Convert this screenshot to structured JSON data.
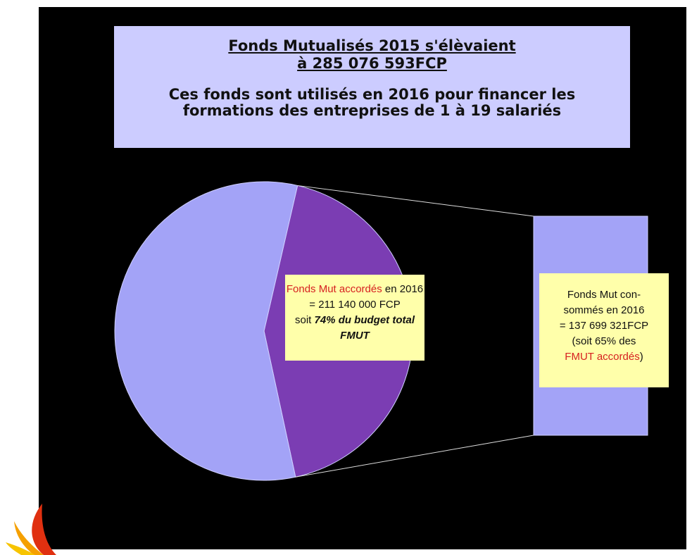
{
  "chart_data": {
    "type": "pie",
    "title": [
      "Fonds Mutualisés 2015 s'élèvaient",
      "à 285 076 593FCP"
    ],
    "subtitle": [
      "Ces fonds sont utilisés en 2016 pour financer les",
      "formations des entreprises de 1 à 19 salariés"
    ],
    "values": [
      43,
      57
    ],
    "colors": [
      "#7b3db3",
      "#a3a3f7"
    ],
    "bar_color": "#a3a3f7",
    "annotations": [
      {
        "lines": [
          [
            "Fonds Mut  accordés",
            " en 2016"
          ],
          [
            "= 211 140 000 FCP"
          ],
          [
            "soit ",
            "74% du budget total"
          ],
          [
            "FMUT"
          ]
        ]
      },
      {
        "lines": [
          [
            "Fonds Mut con-"
          ],
          [
            "sommés en  2016"
          ],
          [
            "= 137 699 321FCP"
          ],
          [
            "(soit 65% des"
          ],
          [
            "FMUT accordés",
            ")"
          ]
        ]
      }
    ]
  }
}
